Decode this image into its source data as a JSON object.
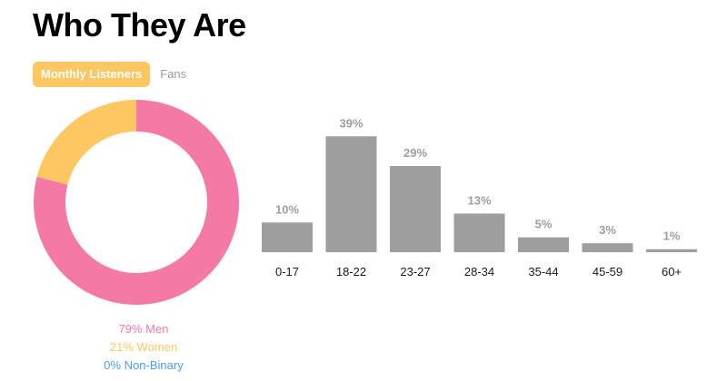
{
  "page": {
    "title": "Who They Are",
    "tabs": [
      {
        "label": "Monthly Listeners",
        "active": true
      },
      {
        "label": "Fans",
        "active": false
      }
    ]
  },
  "colors": {
    "men": "#f579a7",
    "women": "#ffc762",
    "non_binary": "#4f9cf0",
    "bar": "#9e9e9e",
    "bar_label": "#9e9e9e",
    "tick": "#1a1a1a"
  },
  "chart_data": [
    {
      "type": "pie",
      "variant": "donut",
      "slices": [
        {
          "label": "79% Men",
          "value": 79,
          "color_key": "men"
        },
        {
          "label": "21% Women",
          "value": 21,
          "color_key": "women"
        },
        {
          "label": "0% Non-Binary",
          "value": 0,
          "color_key": "non_binary"
        }
      ]
    },
    {
      "type": "bar",
      "categories": [
        "0-17",
        "18-22",
        "23-27",
        "28-34",
        "35-44",
        "45-59",
        "60+"
      ],
      "values": [
        10,
        39,
        29,
        13,
        5,
        3,
        1
      ],
      "value_labels": [
        "10%",
        "39%",
        "29%",
        "13%",
        "5%",
        "3%",
        "1%"
      ],
      "ylim": [
        0,
        40
      ],
      "grid": false
    }
  ]
}
